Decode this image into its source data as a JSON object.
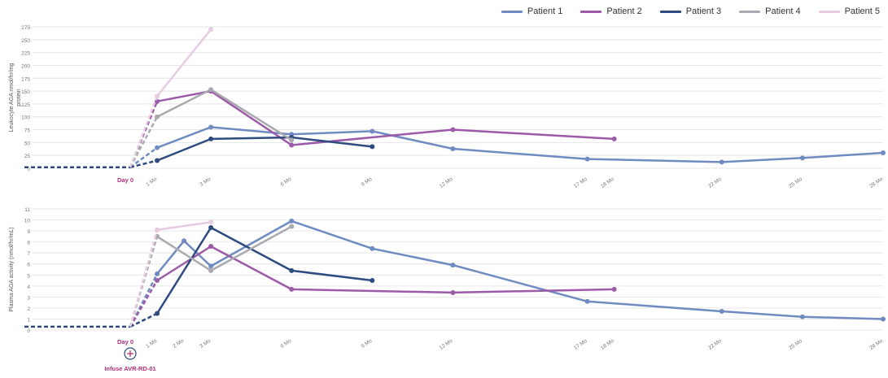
{
  "chart_data": [
    {
      "type": "line",
      "ylabel": "Leukocyte AGA nmol/hr/mg protein",
      "ylim": [
        0,
        275
      ],
      "yticks": [
        0,
        25,
        50,
        75,
        100,
        125,
        150,
        175,
        200,
        225,
        250,
        275
      ],
      "xticks": [
        {
          "label": "1 Mo",
          "x": 1
        },
        {
          "label": "3 Mo",
          "x": 3
        },
        {
          "label": "6 Mo",
          "x": 6
        },
        {
          "label": "9 Mo",
          "x": 9
        },
        {
          "label": "12 Mo",
          "x": 12
        },
        {
          "label": "17 Mo",
          "x": 17
        },
        {
          "label": "18 Mo",
          "x": 18
        },
        {
          "label": "22 Mo",
          "x": 22
        },
        {
          "label": "25 Mo",
          "x": 25
        },
        {
          "label": "28 Mo",
          "x": 28
        }
      ],
      "day0_label": "Day 0",
      "baseline": 2,
      "series": [
        {
          "name": "Patient 1",
          "color": "#6f8bc1",
          "points": [
            [
              0,
              2
            ],
            [
              1,
              40
            ],
            [
              3,
              80
            ],
            [
              6,
              66
            ],
            [
              9,
              72
            ],
            [
              12,
              38
            ],
            [
              17,
              18
            ],
            [
              22,
              12
            ],
            [
              25,
              20
            ],
            [
              28,
              30
            ]
          ]
        },
        {
          "name": "Patient 2",
          "color": "#9c5aa8",
          "points": [
            [
              0,
              2
            ],
            [
              1,
              130
            ],
            [
              3,
              150
            ],
            [
              6,
              45
            ],
            [
              12,
              75
            ],
            [
              18,
              57
            ]
          ]
        },
        {
          "name": "Patient 3",
          "color": "#2e4a80",
          "points": [
            [
              0,
              2
            ],
            [
              1,
              15
            ],
            [
              3,
              57
            ],
            [
              6,
              60
            ],
            [
              9,
              42
            ]
          ]
        },
        {
          "name": "Patient 4",
          "color": "#a9aab0",
          "points": [
            [
              0,
              2
            ],
            [
              1,
              100
            ],
            [
              3,
              153
            ],
            [
              6,
              55
            ]
          ]
        },
        {
          "name": "Patient 5",
          "color": "#e6cce0",
          "points": [
            [
              0,
              2
            ],
            [
              1,
              140
            ],
            [
              3,
              270
            ]
          ]
        }
      ]
    },
    {
      "type": "line",
      "ylabel": "Plasma AGA activity (nmol/hr/mL)",
      "ylim": [
        0,
        11
      ],
      "yticks": [
        0,
        1,
        2,
        3,
        4,
        5,
        6,
        7,
        8,
        9,
        10,
        11
      ],
      "xticks": [
        {
          "label": "1 Mo",
          "x": 1
        },
        {
          "label": "2 Mo",
          "x": 2
        },
        {
          "label": "3 Mo",
          "x": 3
        },
        {
          "label": "6 Mo",
          "x": 6
        },
        {
          "label": "9 Mo",
          "x": 9
        },
        {
          "label": "12 Mo",
          "x": 12
        },
        {
          "label": "17 Mo",
          "x": 17
        },
        {
          "label": "18 Mo",
          "x": 18
        },
        {
          "label": "22 Mo",
          "x": 22
        },
        {
          "label": "25 Mo",
          "x": 25
        },
        {
          "label": "28 Mo",
          "x": 28
        }
      ],
      "day0_label": "Day 0",
      "infuse_label": "Infuse AVR-RD-01",
      "baseline": 0.3,
      "series": [
        {
          "name": "Patient 1",
          "color": "#6f8bc1",
          "points": [
            [
              0,
              0.3
            ],
            [
              1,
              5.1
            ],
            [
              2,
              8.1
            ],
            [
              3,
              5.8
            ],
            [
              6,
              9.9
            ],
            [
              9,
              7.4
            ],
            [
              12,
              5.9
            ],
            [
              17,
              2.6
            ],
            [
              22,
              1.7
            ],
            [
              25,
              1.2
            ],
            [
              28,
              1.0
            ]
          ]
        },
        {
          "name": "Patient 2",
          "color": "#9c5aa8",
          "points": [
            [
              0,
              0.3
            ],
            [
              1,
              4.5
            ],
            [
              3,
              7.6
            ],
            [
              6,
              3.7
            ],
            [
              12,
              3.4
            ],
            [
              18,
              3.7
            ]
          ]
        },
        {
          "name": "Patient 3",
          "color": "#2e4a80",
          "points": [
            [
              0,
              0.3
            ],
            [
              1,
              1.5
            ],
            [
              3,
              9.3
            ],
            [
              6,
              5.4
            ],
            [
              9,
              4.5
            ]
          ]
        },
        {
          "name": "Patient 4",
          "color": "#a9aab0",
          "points": [
            [
              0,
              0.3
            ],
            [
              1,
              8.5
            ],
            [
              3,
              5.4
            ],
            [
              6,
              9.4
            ]
          ]
        },
        {
          "name": "Patient 5",
          "color": "#e6cce0",
          "points": [
            [
              0,
              0.3
            ],
            [
              1,
              9.1
            ],
            [
              3,
              9.8
            ]
          ]
        }
      ]
    }
  ],
  "legend": [
    {
      "name": "Patient 1",
      "color": "#6f8bc1"
    },
    {
      "name": "Patient 2",
      "color": "#9c5aa8"
    },
    {
      "name": "Patient 3",
      "color": "#2e4a80"
    },
    {
      "name": "Patient 4",
      "color": "#a9aab0"
    },
    {
      "name": "Patient 5",
      "color": "#e6cce0"
    }
  ],
  "annotation_color": "#b0307a"
}
